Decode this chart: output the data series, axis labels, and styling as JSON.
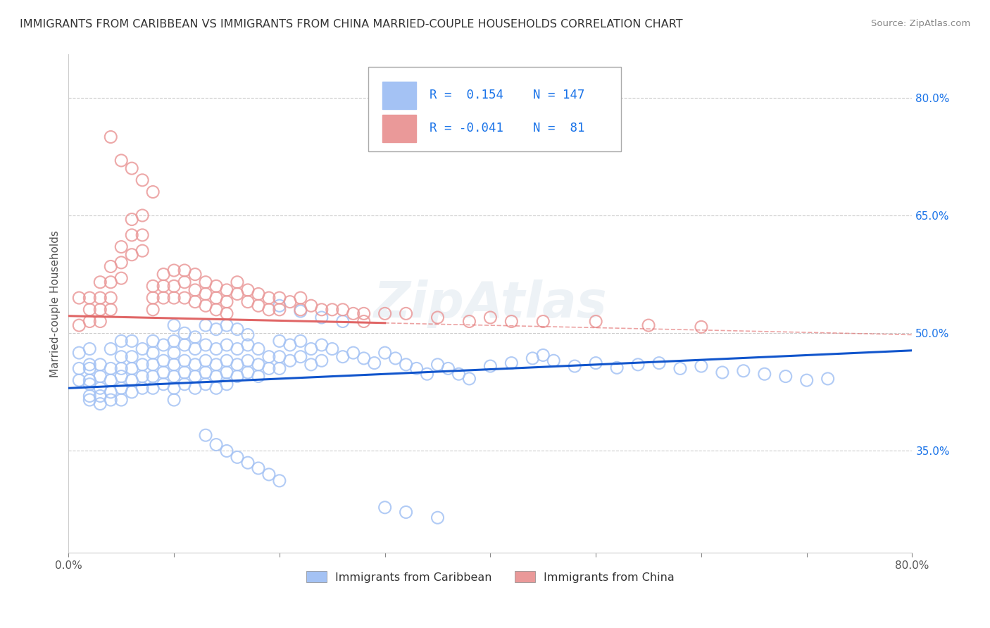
{
  "title": "IMMIGRANTS FROM CARIBBEAN VS IMMIGRANTS FROM CHINA MARRIED-COUPLE HOUSEHOLDS CORRELATION CHART",
  "source": "Source: ZipAtlas.com",
  "ylabel": "Married-couple Households",
  "xlim": [
    0.0,
    0.8
  ],
  "ylim": [
    0.22,
    0.855
  ],
  "ytick_values": [
    0.35,
    0.5,
    0.65,
    0.8
  ],
  "ytick_labels": [
    "35.0%",
    "50.0%",
    "65.0%",
    "80.0%"
  ],
  "xtick_values": [
    0.0,
    0.1,
    0.2,
    0.3,
    0.4,
    0.5,
    0.6,
    0.7,
    0.8
  ],
  "xtick_labels": [
    "0.0%",
    "",
    "",
    "",
    "",
    "",
    "",
    "",
    "80.0%"
  ],
  "r_caribbean": 0.154,
  "n_caribbean": 147,
  "r_china": -0.041,
  "n_china": 81,
  "color_caribbean": "#a4c2f4",
  "color_china": "#ea9999",
  "trendline_caribbean": "#1155cc",
  "trendline_china": "#e06666",
  "background_color": "#ffffff",
  "grid_color": "#cccccc",
  "legend_label_caribbean": "Immigrants from Caribbean",
  "legend_label_china": "Immigrants from China",
  "caribbean_trendline_start_y": 0.43,
  "caribbean_trendline_end_y": 0.478,
  "china_trendline_start_y": 0.522,
  "china_trendline_end_y": 0.498,
  "caribbean_x": [
    0.01,
    0.01,
    0.01,
    0.02,
    0.02,
    0.02,
    0.02,
    0.02,
    0.02,
    0.02,
    0.03,
    0.03,
    0.03,
    0.03,
    0.03,
    0.04,
    0.04,
    0.04,
    0.04,
    0.04,
    0.05,
    0.05,
    0.05,
    0.05,
    0.05,
    0.05,
    0.06,
    0.06,
    0.06,
    0.06,
    0.06,
    0.07,
    0.07,
    0.07,
    0.07,
    0.08,
    0.08,
    0.08,
    0.08,
    0.08,
    0.09,
    0.09,
    0.09,
    0.09,
    0.1,
    0.1,
    0.1,
    0.1,
    0.1,
    0.1,
    0.11,
    0.11,
    0.11,
    0.11,
    0.12,
    0.12,
    0.12,
    0.12,
    0.13,
    0.13,
    0.13,
    0.13,
    0.14,
    0.14,
    0.14,
    0.14,
    0.15,
    0.15,
    0.15,
    0.15,
    0.16,
    0.16,
    0.16,
    0.17,
    0.17,
    0.17,
    0.18,
    0.18,
    0.18,
    0.19,
    0.19,
    0.2,
    0.2,
    0.2,
    0.21,
    0.21,
    0.22,
    0.22,
    0.23,
    0.23,
    0.24,
    0.24,
    0.25,
    0.26,
    0.27,
    0.28,
    0.29,
    0.3,
    0.31,
    0.32,
    0.33,
    0.34,
    0.35,
    0.36,
    0.37,
    0.38,
    0.4,
    0.42,
    0.44,
    0.45,
    0.46,
    0.48,
    0.5,
    0.52,
    0.54,
    0.56,
    0.58,
    0.6,
    0.62,
    0.64,
    0.66,
    0.68,
    0.7,
    0.72,
    0.13,
    0.14,
    0.15,
    0.16,
    0.17,
    0.18,
    0.19,
    0.2,
    0.3,
    0.32,
    0.35,
    0.1,
    0.11,
    0.12,
    0.13,
    0.14,
    0.15,
    0.16,
    0.17,
    0.2,
    0.22,
    0.24,
    0.26
  ],
  "caribbean_y": [
    0.455,
    0.475,
    0.44,
    0.455,
    0.44,
    0.46,
    0.48,
    0.42,
    0.435,
    0.415,
    0.46,
    0.445,
    0.43,
    0.42,
    0.41,
    0.48,
    0.455,
    0.44,
    0.425,
    0.415,
    0.49,
    0.47,
    0.455,
    0.445,
    0.43,
    0.415,
    0.49,
    0.47,
    0.455,
    0.44,
    0.425,
    0.48,
    0.46,
    0.445,
    0.43,
    0.49,
    0.475,
    0.46,
    0.445,
    0.43,
    0.485,
    0.465,
    0.45,
    0.435,
    0.49,
    0.475,
    0.46,
    0.445,
    0.43,
    0.415,
    0.485,
    0.465,
    0.45,
    0.435,
    0.48,
    0.46,
    0.445,
    0.43,
    0.485,
    0.465,
    0.45,
    0.435,
    0.48,
    0.46,
    0.445,
    0.43,
    0.485,
    0.465,
    0.45,
    0.435,
    0.48,
    0.46,
    0.445,
    0.485,
    0.465,
    0.45,
    0.48,
    0.46,
    0.445,
    0.47,
    0.455,
    0.49,
    0.47,
    0.455,
    0.485,
    0.465,
    0.49,
    0.47,
    0.48,
    0.46,
    0.485,
    0.465,
    0.48,
    0.47,
    0.475,
    0.468,
    0.462,
    0.475,
    0.468,
    0.46,
    0.455,
    0.448,
    0.46,
    0.455,
    0.448,
    0.442,
    0.458,
    0.462,
    0.468,
    0.472,
    0.465,
    0.458,
    0.462,
    0.456,
    0.46,
    0.462,
    0.455,
    0.458,
    0.45,
    0.452,
    0.448,
    0.445,
    0.44,
    0.442,
    0.37,
    0.358,
    0.35,
    0.342,
    0.335,
    0.328,
    0.32,
    0.312,
    0.278,
    0.272,
    0.265,
    0.51,
    0.5,
    0.495,
    0.51,
    0.505,
    0.51,
    0.505,
    0.498,
    0.535,
    0.528,
    0.52,
    0.515
  ],
  "china_x": [
    0.01,
    0.01,
    0.02,
    0.02,
    0.02,
    0.03,
    0.03,
    0.03,
    0.03,
    0.04,
    0.04,
    0.04,
    0.04,
    0.05,
    0.05,
    0.05,
    0.06,
    0.06,
    0.06,
    0.07,
    0.07,
    0.07,
    0.08,
    0.08,
    0.08,
    0.09,
    0.09,
    0.09,
    0.1,
    0.1,
    0.1,
    0.11,
    0.11,
    0.11,
    0.12,
    0.12,
    0.12,
    0.13,
    0.13,
    0.13,
    0.14,
    0.14,
    0.14,
    0.15,
    0.15,
    0.15,
    0.16,
    0.16,
    0.17,
    0.17,
    0.18,
    0.18,
    0.19,
    0.19,
    0.2,
    0.2,
    0.21,
    0.22,
    0.22,
    0.23,
    0.24,
    0.25,
    0.26,
    0.27,
    0.28,
    0.28,
    0.3,
    0.32,
    0.35,
    0.38,
    0.4,
    0.42,
    0.45,
    0.5,
    0.55,
    0.6,
    0.04,
    0.05,
    0.06,
    0.07,
    0.08
  ],
  "china_y": [
    0.545,
    0.51,
    0.545,
    0.53,
    0.515,
    0.565,
    0.545,
    0.53,
    0.515,
    0.585,
    0.565,
    0.545,
    0.53,
    0.61,
    0.59,
    0.57,
    0.645,
    0.625,
    0.6,
    0.65,
    0.625,
    0.605,
    0.56,
    0.545,
    0.53,
    0.575,
    0.56,
    0.545,
    0.58,
    0.56,
    0.545,
    0.58,
    0.565,
    0.545,
    0.575,
    0.555,
    0.54,
    0.565,
    0.55,
    0.535,
    0.56,
    0.545,
    0.53,
    0.555,
    0.54,
    0.525,
    0.565,
    0.55,
    0.555,
    0.54,
    0.55,
    0.535,
    0.545,
    0.53,
    0.545,
    0.53,
    0.54,
    0.545,
    0.53,
    0.535,
    0.53,
    0.53,
    0.53,
    0.525,
    0.525,
    0.515,
    0.525,
    0.525,
    0.52,
    0.515,
    0.52,
    0.515,
    0.515,
    0.515,
    0.51,
    0.508,
    0.75,
    0.72,
    0.71,
    0.695,
    0.68
  ]
}
